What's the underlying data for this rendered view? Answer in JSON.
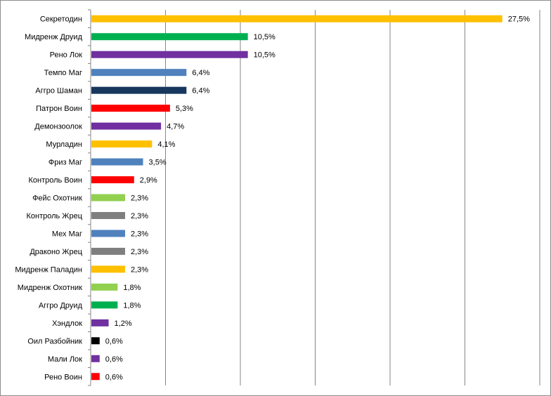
{
  "chart_data": {
    "type": "bar",
    "orientation": "horizontal",
    "xlim": [
      0,
      30
    ],
    "grid": "vertical",
    "legend": "none",
    "title": "",
    "xlabel": "",
    "ylabel": "",
    "bars": [
      {
        "category": "Секретодин",
        "value": 27.5,
        "label": "27,5%",
        "color": "#FFC000"
      },
      {
        "category": "Мидренж Друид",
        "value": 10.5,
        "label": "10,5%",
        "color": "#00B050"
      },
      {
        "category": "Рено Лок",
        "value": 10.5,
        "label": "10,5%",
        "color": "#7030A0"
      },
      {
        "category": "Темпо Маг",
        "value": 6.4,
        "label": "6,4%",
        "color": "#4F81BD"
      },
      {
        "category": "Аггро Шаман",
        "value": 6.4,
        "label": "6,4%",
        "color": "#17375E"
      },
      {
        "category": "Патрон Воин",
        "value": 5.3,
        "label": "5,3%",
        "color": "#FF0000"
      },
      {
        "category": "Демонзоолок",
        "value": 4.7,
        "label": "4,7%",
        "color": "#7030A0"
      },
      {
        "category": "Мурладин",
        "value": 4.1,
        "label": "4,1%",
        "color": "#FFC000"
      },
      {
        "category": "Фриз Маг",
        "value": 3.5,
        "label": "3,5%",
        "color": "#4F81BD"
      },
      {
        "category": "Контроль Воин",
        "value": 2.9,
        "label": "2,9%",
        "color": "#FF0000"
      },
      {
        "category": "Фейс Охотник",
        "value": 2.3,
        "label": "2,3%",
        "color": "#92D050"
      },
      {
        "category": "Контроль Жрец",
        "value": 2.3,
        "label": "2,3%",
        "color": "#7F7F7F"
      },
      {
        "category": "Мех Маг",
        "value": 2.3,
        "label": "2,3%",
        "color": "#4F81BD"
      },
      {
        "category": "Драконо Жрец",
        "value": 2.3,
        "label": "2,3%",
        "color": "#7F7F7F"
      },
      {
        "category": "Мидренж Паладин",
        "value": 2.3,
        "label": "2,3%",
        "color": "#FFC000"
      },
      {
        "category": "Мидренж Охотник",
        "value": 1.8,
        "label": "1,8%",
        "color": "#92D050"
      },
      {
        "category": "Аггро Друид",
        "value": 1.8,
        "label": "1,8%",
        "color": "#00B050"
      },
      {
        "category": "Хэндлок",
        "value": 1.2,
        "label": "1,2%",
        "color": "#7030A0"
      },
      {
        "category": "Оил Разбойник",
        "value": 0.6,
        "label": "0,6%",
        "color": "#000000"
      },
      {
        "category": "Мали Лок",
        "value": 0.6,
        "label": "0,6%",
        "color": "#7030A0"
      },
      {
        "category": "Рено Воин",
        "value": 0.6,
        "label": "0,6%",
        "color": "#FF0000"
      }
    ]
  }
}
